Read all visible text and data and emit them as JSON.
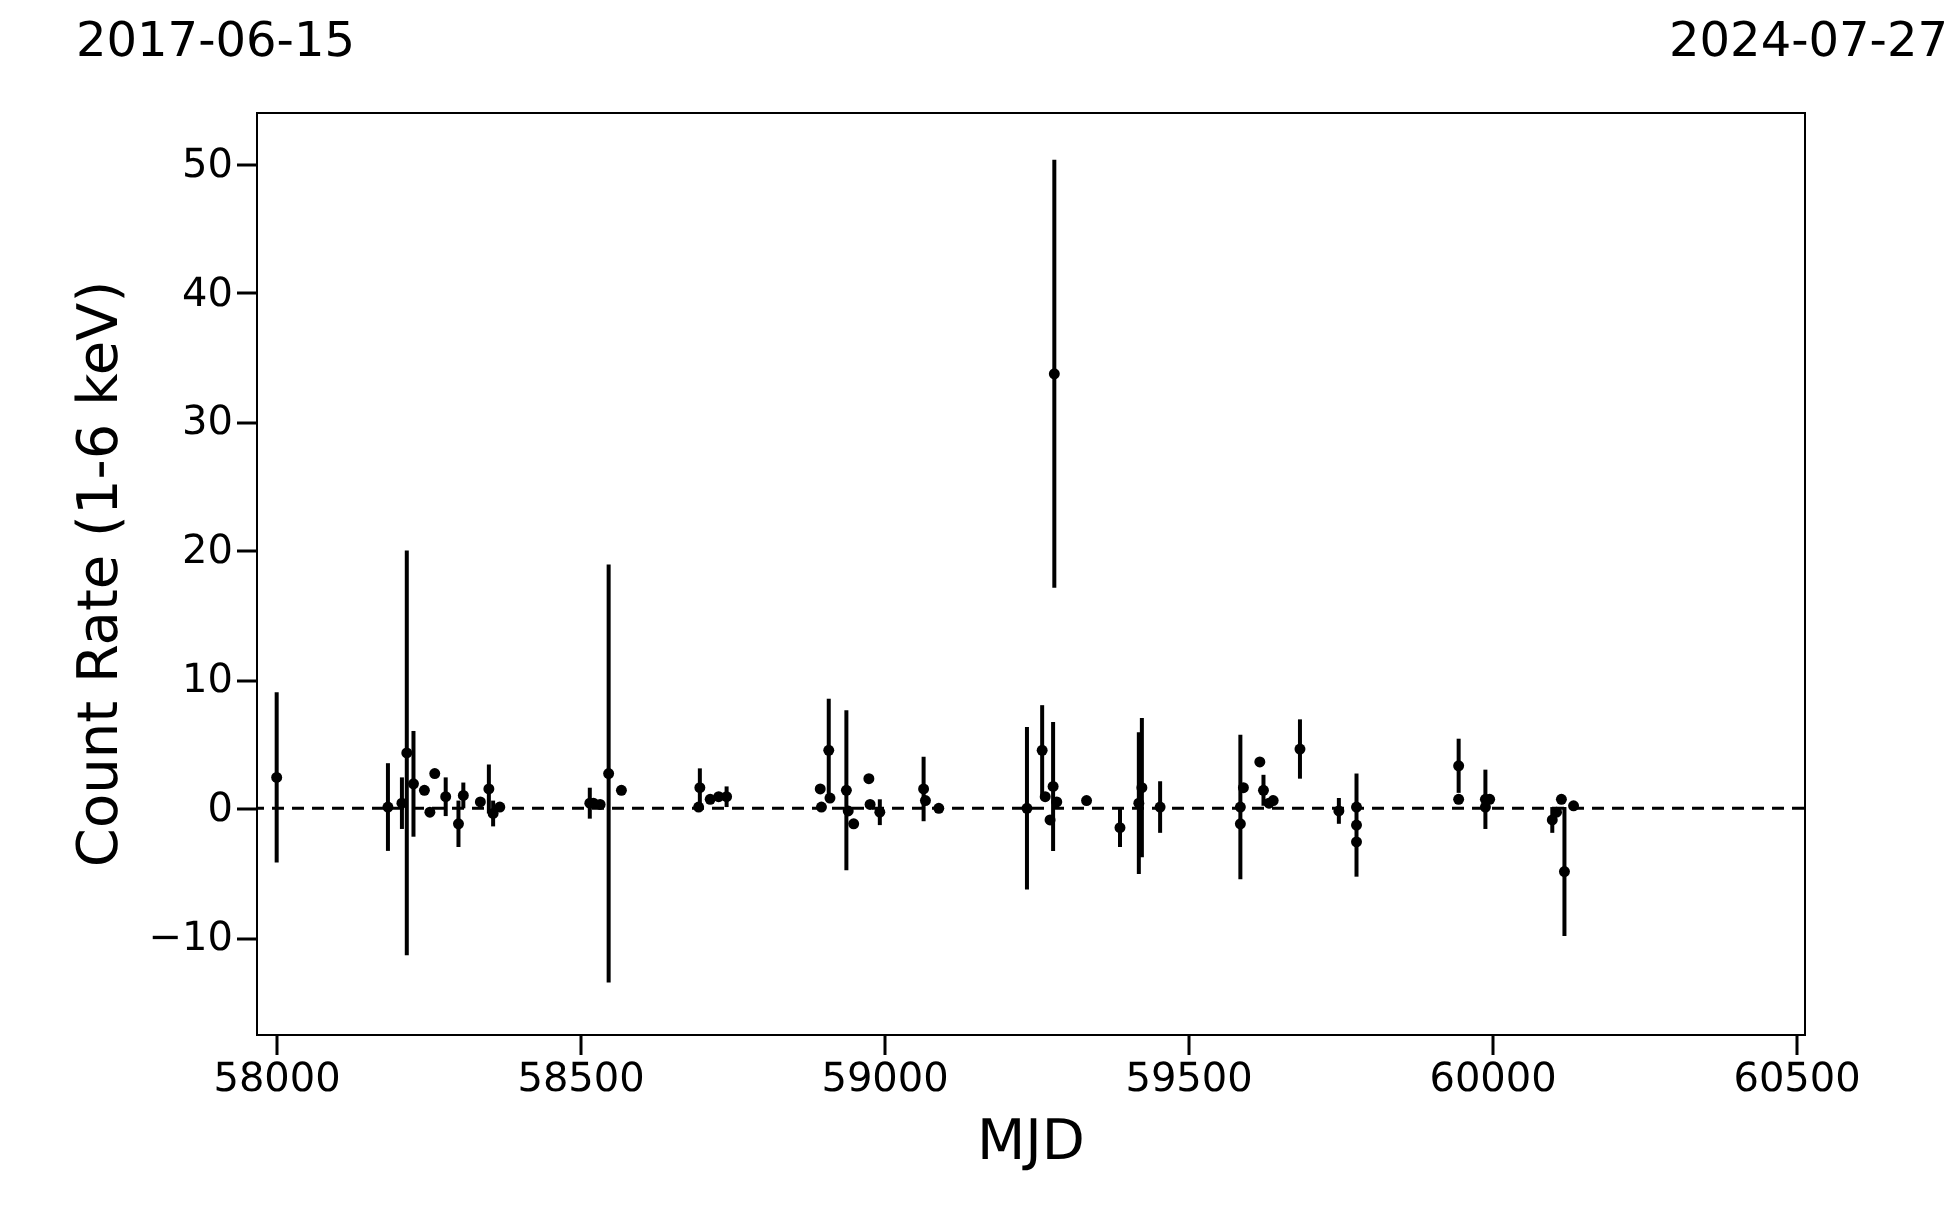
{
  "chart_data": {
    "type": "scatter",
    "xlabel": "MJD",
    "ylabel": "Count Rate (1-6 keV)",
    "annotations": [
      "2017-06-15",
      "2024-07-27"
    ],
    "xlim": [
      57967,
      60513
    ],
    "ylim": [
      -17.5,
      54
    ],
    "xticks": [
      58000,
      58500,
      59000,
      59500,
      60000,
      60500
    ],
    "yticks": [
      -10,
      0,
      10,
      20,
      30,
      40,
      50
    ],
    "grid": false,
    "marker": "circle",
    "ref_lines": [
      {
        "axis": "y",
        "value": 0,
        "color": "#000000",
        "line_style": "dashed"
      }
    ],
    "series": [
      {
        "color": "#000000",
        "x": [
          58001,
          58184,
          58207,
          58215,
          58226,
          58244,
          58253,
          58261,
          58279,
          58300,
          58308,
          58336,
          58350,
          58357,
          58368,
          58516,
          58522,
          58533,
          58547,
          58568,
          58695,
          58697,
          58714,
          58728,
          58741,
          58895,
          58897,
          58909,
          58911,
          58938,
          58941,
          58950,
          58975,
          58977,
          58993,
          59065,
          59068,
          59090,
          59235,
          59260,
          59265,
          59273,
          59278,
          59280,
          59284,
          59333,
          59388,
          59419,
          59424,
          59454,
          59586,
          59586,
          59591,
          59618,
          59624,
          59633,
          59640,
          59684,
          59748,
          59777,
          59777,
          59777,
          59945,
          59945,
          59989,
          59989,
          59996,
          60099,
          60106,
          60114,
          60119,
          60134
        ],
        "values": [
          2.4,
          0.1,
          0.4,
          4.3,
          1.9,
          1.4,
          -0.3,
          2.7,
          0.9,
          -1.2,
          1.0,
          0.5,
          1.5,
          -0.4,
          0.1,
          0.4,
          0.4,
          0.3,
          2.7,
          1.4,
          0.1,
          1.6,
          0.7,
          0.9,
          0.9,
          1.5,
          0.1,
          4.5,
          0.8,
          1.4,
          -0.2,
          -1.2,
          2.3,
          0.3,
          -0.3,
          1.5,
          0.6,
          0.0,
          0.0,
          4.5,
          0.9,
          -0.9,
          1.7,
          33.7,
          0.5,
          0.6,
          -1.5,
          0.4,
          1.6,
          0.1,
          0.1,
          -1.2,
          1.6,
          3.6,
          1.4,
          0.4,
          0.6,
          4.6,
          -0.2,
          0.1,
          -1.3,
          -2.6,
          3.3,
          0.7,
          0.7,
          0.1,
          0.7,
          -0.9,
          -0.3,
          0.7,
          -4.9,
          0.2
        ],
        "errors": [
          6.6,
          3.4,
          2.0,
          15.7,
          4.1,
          null,
          null,
          null,
          1.5,
          1.8,
          1.0,
          null,
          1.9,
          1.0,
          null,
          1.2,
          null,
          null,
          16.2,
          null,
          null,
          1.5,
          null,
          null,
          0.8,
          null,
          null,
          4.0,
          null,
          6.2,
          null,
          null,
          null,
          null,
          1.0,
          2.5,
          null,
          null,
          6.3,
          3.5,
          null,
          null,
          5.0,
          16.6,
          null,
          null,
          1.5,
          5.5,
          5.4,
          2.0,
          5.6,
          null,
          null,
          null,
          1.2,
          null,
          null,
          2.3,
          1.0,
          null,
          4.0,
          null,
          2.1,
          null,
          2.3,
          null,
          null,
          1.0,
          null,
          null,
          5.0,
          null
        ]
      }
    ]
  }
}
